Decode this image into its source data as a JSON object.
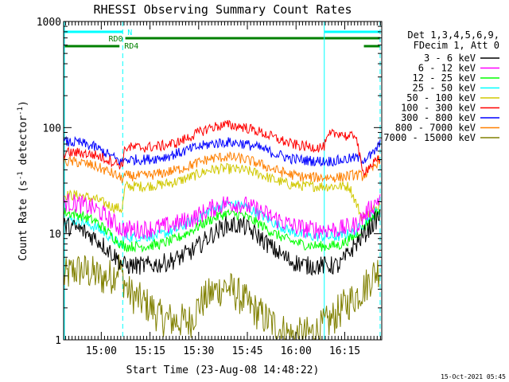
{
  "chart_data": {
    "type": "line",
    "title": "RHESSI Observing Summary Count Rates",
    "xlabel": "Start Time (23-Aug-08 14:48:22)",
    "ylabel_main": "Count Rate (s",
    "ylabel_sup1": "-1",
    "ylabel_mid": " detector",
    "ylabel_sup2": "-1",
    "ylabel_end": ")",
    "yscale": "log",
    "ylim": [
      1,
      1000
    ],
    "xlim_minutes": [
      0,
      98
    ],
    "x_ticks": [
      {
        "label": "15:00",
        "t": 11.6
      },
      {
        "label": "15:15",
        "t": 26.6
      },
      {
        "label": "15:30",
        "t": 41.6
      },
      {
        "label": "15:45",
        "t": 56.6
      },
      {
        "label": "16:00",
        "t": 71.6
      },
      {
        "label": "16:15",
        "t": 86.6
      }
    ],
    "y_ticks": [
      {
        "label": "1000",
        "v": 1000
      },
      {
        "label": "100",
        "v": 100
      },
      {
        "label": "10",
        "v": 10
      },
      {
        "label": "1",
        "v": 1
      }
    ],
    "legend": {
      "position": "right",
      "header_line1": "Det 1,3,4,5,6,9,",
      "header_line2": "FDecim 1, Att 0",
      "entries": [
        {
          "label": "3 - 6 keV",
          "color": "#000000"
        },
        {
          "label": "6 - 12 keV",
          "color": "#ff00ff"
        },
        {
          "label": "12 - 25 keV",
          "color": "#00ff00"
        },
        {
          "label": "25 - 50 keV",
          "color": "#00ffff"
        },
        {
          "label": "50 - 100 keV",
          "color": "#d0c800"
        },
        {
          "label": "100 - 300 keV",
          "color": "#ff0000"
        },
        {
          "label": "300 - 800 keV",
          "color": "#0000ff"
        },
        {
          "label": "800 - 7000 keV",
          "color": "#ff8000"
        },
        {
          "label": "7000 - 15000 keV",
          "color": "#808000"
        }
      ]
    },
    "night_boundaries_minutes": [
      18.2,
      80.3,
      97.5
    ],
    "saa_bar": {
      "label": "N",
      "color": "#00ffff",
      "segments_minutes": [
        [
          0,
          18.2
        ],
        [
          80.3,
          97.5
        ]
      ]
    },
    "rd0_bar": {
      "label": "RD0",
      "color": "#008000",
      "segments_minutes": [
        [
          19.0,
          92.0
        ],
        [
          92.0,
          97.5
        ]
      ]
    },
    "rd4_bar": {
      "label": "RD4",
      "color": "#008000",
      "segments_minutes": [
        [
          0,
          17.2
        ],
        [
          92.5,
          97.5
        ]
      ]
    },
    "series": [
      {
        "name": "3 - 6 keV",
        "color": "#000000",
        "x": [
          0,
          5,
          10,
          15,
          18,
          19,
          25,
          30,
          35,
          40,
          45,
          50,
          55,
          60,
          65,
          70,
          75,
          80,
          85,
          90,
          95,
          97.5
        ],
        "y": [
          12,
          11,
          9,
          6.5,
          5.2,
          5.0,
          5.0,
          5.2,
          5.8,
          7.0,
          9.5,
          12,
          12,
          9.5,
          7.0,
          5.5,
          5.0,
          5.0,
          5.0,
          8.0,
          12,
          15
        ]
      },
      {
        "name": "6 - 12 keV",
        "color": "#ff00ff",
        "x": [
          0,
          5,
          10,
          15,
          18,
          19,
          25,
          30,
          35,
          40,
          45,
          50,
          55,
          60,
          65,
          70,
          75,
          80,
          85,
          90,
          95,
          97.5
        ],
        "y": [
          20,
          19,
          17,
          13,
          11,
          11,
          11,
          11.5,
          12.5,
          14,
          17,
          19.5,
          19,
          16.5,
          14,
          12,
          11,
          11,
          11,
          12,
          18,
          22
        ]
      },
      {
        "name": "12 - 25 keV",
        "color": "#00ff00",
        "x": [
          0,
          5,
          10,
          15,
          18,
          19,
          25,
          30,
          35,
          40,
          45,
          50,
          55,
          60,
          65,
          70,
          75,
          80,
          85,
          90,
          95,
          97.5
        ],
        "y": [
          16,
          15,
          13,
          9.5,
          7.8,
          7.6,
          7.6,
          8.0,
          9.0,
          11,
          13.5,
          15.5,
          15,
          12.5,
          10,
          8.5,
          7.8,
          7.6,
          7.8,
          9.5,
          14,
          17
        ]
      },
      {
        "name": "25 - 50 keV",
        "color": "#00ffff",
        "x": [
          0,
          5,
          10,
          15,
          18,
          19,
          25,
          30,
          35,
          40,
          45,
          50,
          55,
          60,
          65,
          70,
          75,
          80,
          85,
          90,
          95,
          97.5
        ],
        "y": [
          14,
          13,
          11.5,
          9,
          7.6,
          9.3,
          9.3,
          9.8,
          11,
          13.5,
          16.5,
          19,
          18.5,
          15.5,
          12.5,
          10.5,
          9.5,
          9.3,
          9.4,
          10.5,
          15,
          17
        ]
      },
      {
        "name": "50 - 100 keV",
        "color": "#d0c800",
        "x": [
          0,
          5,
          10,
          15,
          18,
          19,
          25,
          30,
          35,
          40,
          45,
          50,
          55,
          60,
          65,
          70,
          75,
          80,
          85,
          88,
          92,
          95,
          97.5
        ],
        "y": [
          23,
          23,
          21,
          18,
          17,
          28,
          28,
          29,
          31,
          35,
          40,
          41,
          40,
          37,
          32,
          29,
          28,
          28,
          28,
          28,
          14,
          16,
          20
        ]
      },
      {
        "name": "100 - 300 keV",
        "color": "#ff0000",
        "x": [
          0,
          5,
          10,
          15,
          18,
          19,
          25,
          30,
          35,
          40,
          45,
          50,
          55,
          60,
          65,
          70,
          75,
          80,
          82,
          85,
          88,
          90,
          92,
          95,
          97.5
        ],
        "y": [
          58,
          58,
          55,
          48,
          44,
          65,
          65,
          67,
          72,
          85,
          100,
          106,
          102,
          92,
          80,
          70,
          66,
          65,
          85,
          90,
          80,
          88,
          38,
          45,
          50
        ]
      },
      {
        "name": "300 - 800 keV",
        "color": "#0000ff",
        "x": [
          0,
          5,
          10,
          15,
          18,
          19,
          25,
          30,
          35,
          40,
          45,
          50,
          55,
          60,
          65,
          70,
          75,
          80,
          85,
          90,
          92,
          95,
          97.5
        ],
        "y": [
          73,
          72,
          65,
          53,
          47,
          50,
          50,
          52,
          57,
          64,
          70,
          73,
          71,
          65,
          57,
          51,
          49,
          48,
          49,
          52,
          50,
          55,
          70
        ]
      },
      {
        "name": "800 - 7000 keV",
        "color": "#ff8000",
        "x": [
          0,
          5,
          10,
          15,
          18,
          19,
          25,
          30,
          35,
          40,
          45,
          50,
          55,
          60,
          65,
          70,
          75,
          80,
          85,
          90,
          92,
          95,
          97.5
        ],
        "y": [
          48,
          47,
          43,
          37,
          33,
          35,
          35,
          37,
          40,
          45,
          51,
          53,
          51,
          46,
          40,
          36,
          34,
          34,
          34,
          36,
          35,
          40,
          52
        ]
      },
      {
        "name": "7000 - 15000 keV",
        "color": "#808000",
        "x": [
          0,
          3,
          6,
          9,
          12,
          15,
          17,
          18,
          20,
          23,
          27,
          30,
          35,
          39,
          42,
          46,
          50,
          54,
          58,
          62,
          66,
          70,
          74,
          78,
          82,
          86,
          90,
          93,
          95,
          97.5
        ],
        "y": [
          3.8,
          4.5,
          4.5,
          4.2,
          3.8,
          4.0,
          5.0,
          4.0,
          2.8,
          2.4,
          2.0,
          1.6,
          1.5,
          1.5,
          2.2,
          2.8,
          3.2,
          2.6,
          2.0,
          1.6,
          1.3,
          1.1,
          1.1,
          1.2,
          1.5,
          2.0,
          2.6,
          3.2,
          4.0,
          4.8
        ]
      }
    ]
  },
  "footer_timestamp": "15-Oct-2021 05:45"
}
